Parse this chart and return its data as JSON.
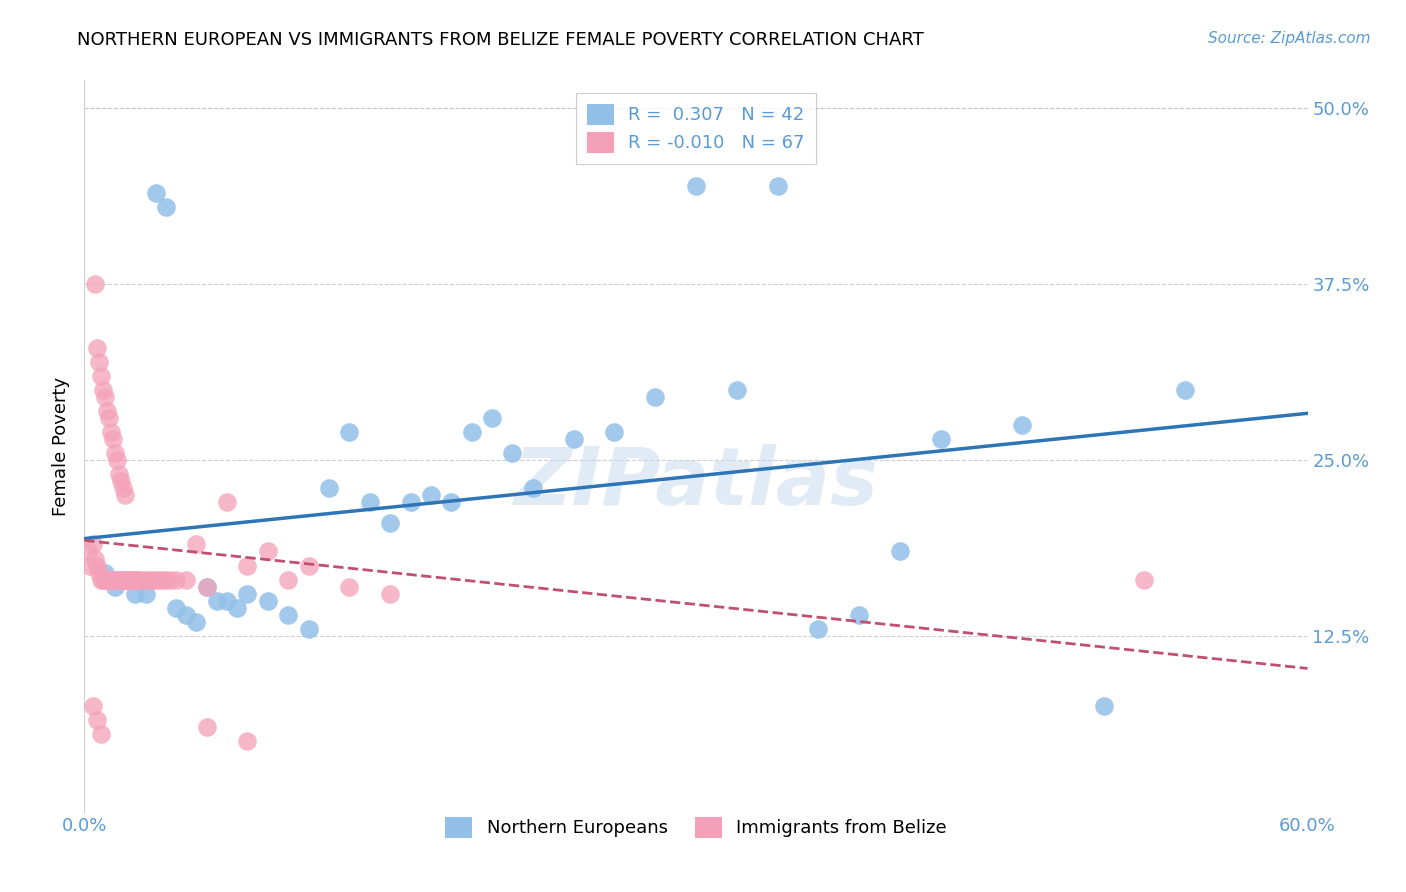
{
  "title": "NORTHERN EUROPEAN VS IMMIGRANTS FROM BELIZE FEMALE POVERTY CORRELATION CHART",
  "source": "Source: ZipAtlas.com",
  "ylabel": "Female Poverty",
  "xlim": [
    0.0,
    0.6
  ],
  "ylim": [
    0.0,
    0.52
  ],
  "blue_color": "#92C0E8",
  "pink_color": "#F4A0B8",
  "blue_line_color": "#2E75B6",
  "pink_line_color": "#C05070",
  "legend_R_blue": "R =  0.307",
  "legend_N_blue": "N = 42",
  "legend_R_pink": "R = -0.010",
  "legend_N_pink": "N = 67",
  "watermark": "ZIPatlas",
  "blue_scatter_x": [
    0.01,
    0.015,
    0.02,
    0.025,
    0.03,
    0.035,
    0.04,
    0.045,
    0.05,
    0.055,
    0.06,
    0.065,
    0.07,
    0.075,
    0.08,
    0.09,
    0.1,
    0.11,
    0.12,
    0.13,
    0.14,
    0.15,
    0.16,
    0.17,
    0.18,
    0.19,
    0.2,
    0.21,
    0.22,
    0.24,
    0.26,
    0.28,
    0.3,
    0.32,
    0.34,
    0.36,
    0.38,
    0.4,
    0.42,
    0.46,
    0.5,
    0.54
  ],
  "blue_scatter_y": [
    0.17,
    0.16,
    0.165,
    0.155,
    0.155,
    0.44,
    0.43,
    0.145,
    0.14,
    0.135,
    0.16,
    0.15,
    0.15,
    0.145,
    0.155,
    0.15,
    0.14,
    0.13,
    0.23,
    0.27,
    0.22,
    0.205,
    0.22,
    0.225,
    0.22,
    0.27,
    0.28,
    0.255,
    0.23,
    0.265,
    0.27,
    0.295,
    0.445,
    0.3,
    0.445,
    0.13,
    0.14,
    0.185,
    0.265,
    0.275,
    0.075,
    0.3
  ],
  "pink_scatter_x": [
    0.002,
    0.003,
    0.004,
    0.005,
    0.005,
    0.006,
    0.006,
    0.007,
    0.007,
    0.008,
    0.008,
    0.009,
    0.009,
    0.01,
    0.01,
    0.011,
    0.011,
    0.012,
    0.012,
    0.013,
    0.013,
    0.014,
    0.014,
    0.015,
    0.015,
    0.016,
    0.016,
    0.017,
    0.017,
    0.018,
    0.018,
    0.019,
    0.019,
    0.02,
    0.02,
    0.021,
    0.022,
    0.023,
    0.024,
    0.025,
    0.026,
    0.027,
    0.028,
    0.03,
    0.032,
    0.034,
    0.036,
    0.038,
    0.04,
    0.042,
    0.045,
    0.05,
    0.055,
    0.06,
    0.07,
    0.08,
    0.09,
    0.1,
    0.11,
    0.13,
    0.15,
    0.06,
    0.08,
    0.004,
    0.006,
    0.008,
    0.52
  ],
  "pink_scatter_y": [
    0.185,
    0.175,
    0.19,
    0.18,
    0.375,
    0.175,
    0.33,
    0.17,
    0.32,
    0.165,
    0.31,
    0.165,
    0.3,
    0.165,
    0.295,
    0.165,
    0.285,
    0.165,
    0.28,
    0.165,
    0.27,
    0.165,
    0.265,
    0.165,
    0.255,
    0.165,
    0.25,
    0.165,
    0.24,
    0.165,
    0.235,
    0.165,
    0.23,
    0.165,
    0.225,
    0.165,
    0.165,
    0.165,
    0.165,
    0.165,
    0.165,
    0.165,
    0.165,
    0.165,
    0.165,
    0.165,
    0.165,
    0.165,
    0.165,
    0.165,
    0.165,
    0.165,
    0.19,
    0.16,
    0.22,
    0.175,
    0.185,
    0.165,
    0.175,
    0.16,
    0.155,
    0.06,
    0.05,
    0.075,
    0.065,
    0.055,
    0.165
  ]
}
